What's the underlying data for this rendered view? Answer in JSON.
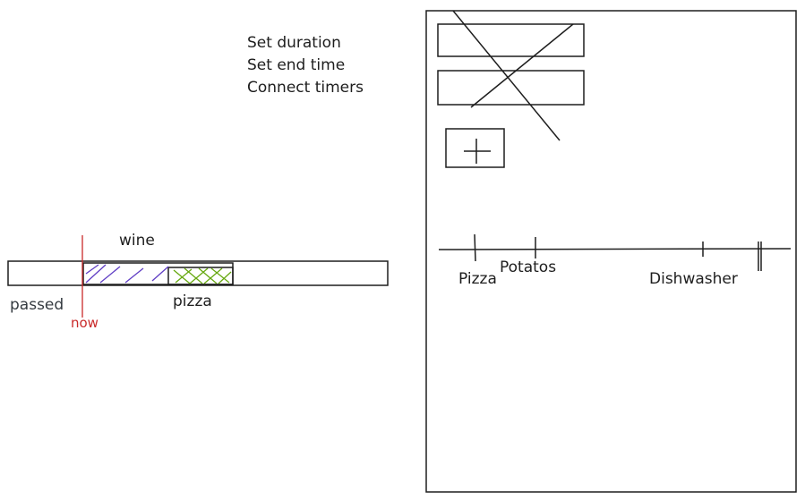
{
  "notes": [
    "Set duration",
    "Set end time",
    "Connect timers"
  ],
  "left_bar": {
    "top_label": "wine",
    "bottom_label": "pizza",
    "passed_label": "passed",
    "now_label": "now"
  },
  "phone": {
    "add_button_symbol": "+",
    "timeline_labels": [
      "Pizza",
      "Potatos",
      "Dishwasher"
    ]
  },
  "colors": {
    "stroke": "#1e1e1e",
    "now_line": "#c92a2a",
    "wine_hatch": "#5f3dc4",
    "pizza_hatch": "#66a80f"
  }
}
